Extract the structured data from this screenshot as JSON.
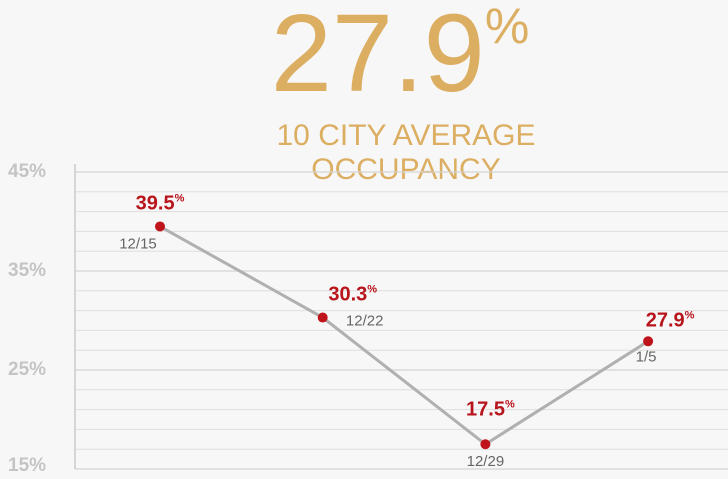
{
  "chart_data": {
    "type": "line",
    "headline": "27.9%",
    "subtitle": [
      "10 CITY AVERAGE",
      "OCCUPANCY"
    ],
    "categories": [
      "12/15",
      "12/22",
      "12/29",
      "1/5"
    ],
    "values": [
      39.5,
      30.3,
      17.5,
      27.9
    ],
    "value_labels": [
      "39.5%",
      "30.3%",
      "17.5%",
      "27.9%"
    ],
    "color": "#b0b0b0",
    "marker_color": "#c0141c",
    "ylim": [
      15,
      45
    ],
    "yticks": [
      {
        "value": 15,
        "label": "15%"
      },
      {
        "value": 25,
        "label": "25%"
      },
      {
        "value": 35,
        "label": "35%"
      },
      {
        "value": 45,
        "label": "45%"
      }
    ],
    "minor_yticks": [
      17,
      19,
      21,
      23,
      27,
      29,
      31,
      33,
      37,
      39,
      41,
      43
    ],
    "grid": true
  }
}
